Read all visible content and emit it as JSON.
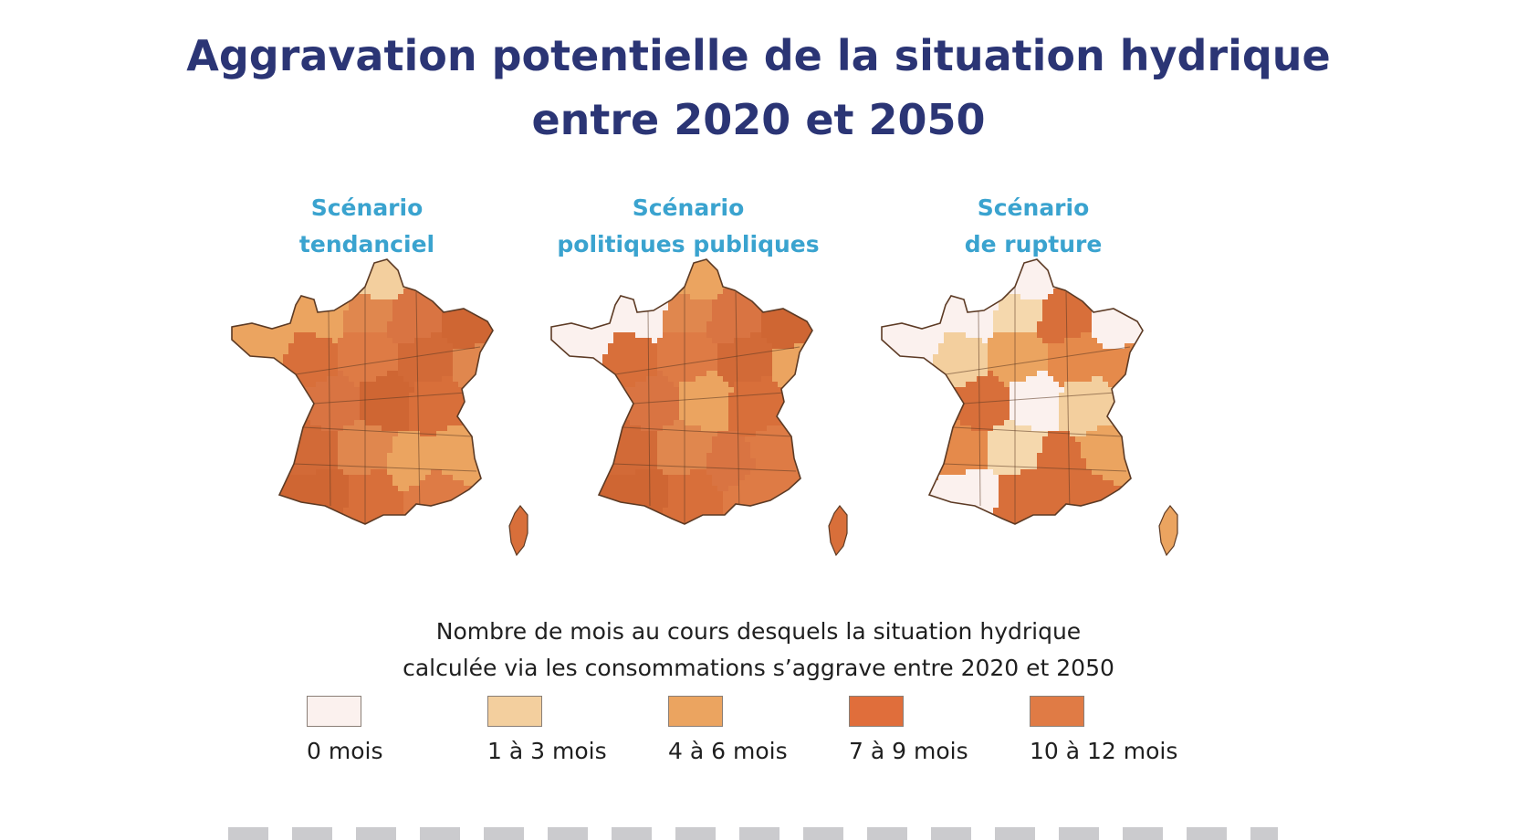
{
  "title": {
    "line1": "Aggravation potentielle de la situation hydrique",
    "line2": "entre 2020 et 2050"
  },
  "colors": {
    "title": "#2b3575",
    "scenario_title": "#3aa3cf",
    "border": "#5c3a24"
  },
  "scenarios": [
    {
      "line1": "Scénario",
      "line2": "tendanciel",
      "palette": [
        "#d86f3a",
        "#de7b45",
        "#d26a37",
        "#e0874e",
        "#d97442",
        "#cf6633"
      ],
      "highlights": {
        "nw": "#eba460",
        "north": "#f3cf9e",
        "se": "#eba460",
        "alps_edge": "#eba460"
      }
    },
    {
      "line1": "Scénario",
      "line2": "politiques publiques",
      "palette": [
        "#d86f3a",
        "#de7b45",
        "#d26a37",
        "#e0874e",
        "#d97442",
        "#cf6633"
      ],
      "highlights": {
        "nw": "#fbf1ee",
        "north": "#eba460",
        "east": "#eba460",
        "center": "#eba460"
      }
    },
    {
      "line1": "Scénario",
      "line2": "de rupture",
      "palette": [
        "#f3cf9e",
        "#eba460",
        "#e58a4b",
        "#f5d8ad",
        "#d86f3a",
        "#fbf1ee"
      ],
      "highlights": {
        "nw": "#fbf1ee",
        "north": "#fbf1ee",
        "east": "#e58a4b",
        "south": "#d86f3a"
      }
    }
  ],
  "legend": {
    "caption_line1": "Nombre de mois au cours desquels la situation hydrique",
    "caption_line2": "calculée via les consommations s’aggrave entre 2020 et 2050",
    "items": [
      {
        "label": "0 mois",
        "color": "#fbf1ee"
      },
      {
        "label": "1 à 3 mois",
        "color": "#f3cf9e"
      },
      {
        "label": "4 à 6 mois",
        "color": "#eba460"
      },
      {
        "label": "7 à 9 mois",
        "color": "#e06e3b"
      },
      {
        "label": "10 à 12 mois",
        "color": "#e07b45"
      }
    ]
  }
}
